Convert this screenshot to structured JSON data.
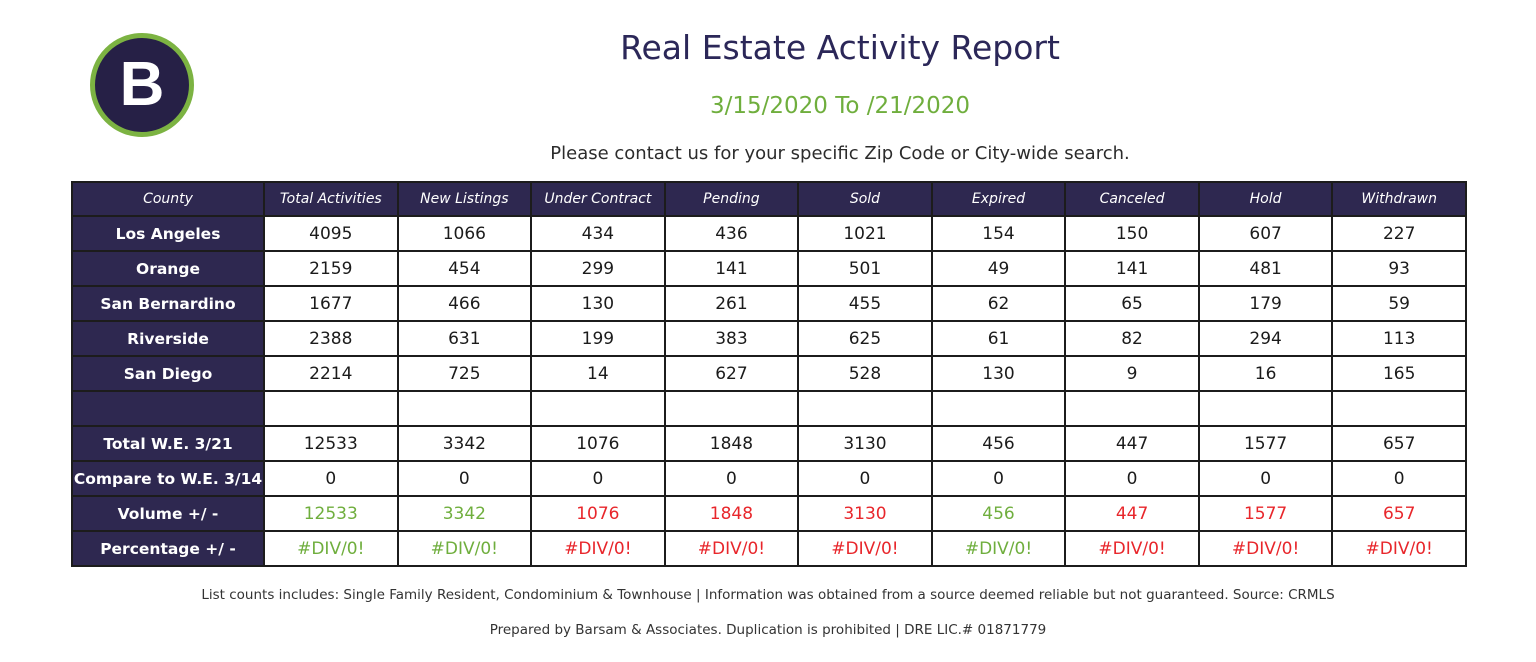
{
  "logo": {
    "letter": "B",
    "fill": "#262046",
    "ring": "#7cb342"
  },
  "header": {
    "title": "Real Estate Activity Report",
    "date_range": "3/15/2020 To /21/2020",
    "contact": "Please contact us for your specific Zip Code or City-wide search."
  },
  "table": {
    "columns": [
      "County",
      "Total Activities",
      "New Listings",
      "Under Contract",
      "Pending",
      "Sold",
      "Expired",
      "Canceled",
      "Hold",
      "Withdrawn"
    ],
    "counties": [
      {
        "name": "Los Angeles",
        "values": [
          "4095",
          "1066",
          "434",
          "436",
          "1021",
          "154",
          "150",
          "607",
          "227"
        ]
      },
      {
        "name": "Orange",
        "values": [
          "2159",
          "454",
          "299",
          "141",
          "501",
          "49",
          "141",
          "481",
          "93"
        ]
      },
      {
        "name": "San Bernardino",
        "values": [
          "1677",
          "466",
          "130",
          "261",
          "455",
          "62",
          "65",
          "179",
          "59"
        ]
      },
      {
        "name": "Riverside",
        "values": [
          "2388",
          "631",
          "199",
          "383",
          "625",
          "61",
          "82",
          "294",
          "113"
        ]
      },
      {
        "name": "San Diego",
        "values": [
          "2214",
          "725",
          "14",
          "627",
          "528",
          "130",
          "9",
          "16",
          "165"
        ]
      }
    ],
    "total": {
      "label": "Total W.E. 3/21",
      "values": [
        "12533",
        "3342",
        "1076",
        "1848",
        "3130",
        "456",
        "447",
        "1577",
        "657"
      ]
    },
    "compare": {
      "label": "Compare to W.E. 3/14",
      "values": [
        "0",
        "0",
        "0",
        "0",
        "0",
        "0",
        "0",
        "0",
        "0"
      ]
    },
    "volume": {
      "label": "Volume +/ -",
      "values": [
        "12533",
        "3342",
        "1076",
        "1848",
        "3130",
        "456",
        "447",
        "1577",
        "657"
      ]
    },
    "percentage": {
      "label": "Percentage +/ -",
      "values": [
        "#DIV/0!",
        "#DIV/0!",
        "#DIV/0!",
        "#DIV/0!",
        "#DIV/0!",
        "#DIV/0!",
        "#DIV/0!",
        "#DIV/0!",
        "#DIV/0!"
      ]
    },
    "highlight_colors": [
      "green",
      "green",
      "red",
      "red",
      "red",
      "green",
      "red",
      "red",
      "red"
    ],
    "color_codes": {
      "green": "#6fae3d",
      "red": "#e8262b",
      "header_bg": "#2e2850"
    }
  },
  "footer": {
    "line1": "List counts includes: Single Family Resident, Condominium & Townhouse | Information was obtained from a source deemed reliable but not guaranteed.  Source: CRMLS",
    "line2": "Prepared by Barsam & Associates. Duplication is prohibited | DRE LIC.# 01871779"
  }
}
